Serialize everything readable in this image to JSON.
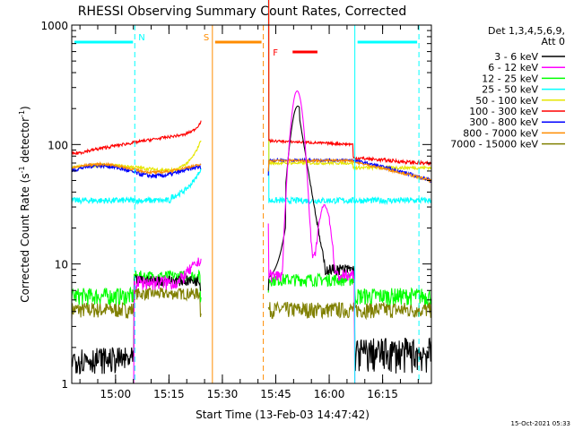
{
  "chart_data": {
    "type": "line",
    "title": "RHESSI Observing Summary Count Rates, Corrected",
    "xlabel": "Start Time (13-Feb-03 14:47:42)",
    "ylabel_main": "Corrected Count Rate (s",
    "ylabel_sup1": "-1",
    "ylabel_mid": " detector",
    "ylabel_sup2": "-1",
    "ylabel_end": ")",
    "yscale": "log",
    "ylim": [
      1,
      1000
    ],
    "xlim_minutes": [
      0,
      101
    ],
    "x_tick_labels": [
      "15:00",
      "15:15",
      "15:30",
      "15:45",
      "16:00",
      "16:15"
    ],
    "x_tick_minutes": [
      12.3,
      27.3,
      42.3,
      57.3,
      72.3,
      87.3
    ],
    "y_tick_labels": [
      "1",
      "10",
      "100",
      "1000"
    ],
    "y_tick_values": [
      1,
      10,
      100,
      1000
    ],
    "legend": {
      "header1": "Det 1,3,4,5,6,9,",
      "header2": "Att 0",
      "position": "right"
    },
    "series": [
      {
        "name": "3 - 6 keV",
        "color": "#000000"
      },
      {
        "name": "6 - 12 keV",
        "color": "#ff00ff"
      },
      {
        "name": "12 - 25 keV",
        "color": "#00ff00"
      },
      {
        "name": "25 - 50 keV",
        "color": "#00ffff"
      },
      {
        "name": "50 - 100 keV",
        "color": "#e6e600"
      },
      {
        "name": "100 - 300 keV",
        "color": "#ff0000"
      },
      {
        "name": "300 - 800 keV",
        "color": "#0000ff"
      },
      {
        "name": "800 - 7000 keV",
        "color": "#ff8c00"
      },
      {
        "name": "7000 - 15000 keV",
        "color": "#808000"
      }
    ],
    "annotations": [
      {
        "label": "N",
        "kind": "night",
        "color": "#00ffff",
        "start_min": 0,
        "end_min": 17.7
      },
      {
        "label": "S",
        "kind": "saa",
        "color": "#ff8c00",
        "start_min": 39.5,
        "end_min": 53.8
      },
      {
        "label": "F",
        "kind": "flare",
        "color": "#ff0000",
        "start_min": 59,
        "end_min": 69.5
      },
      {
        "label": "",
        "kind": "night",
        "color": "#00ffff",
        "start_min": 79.5,
        "end_min": 97.5
      }
    ],
    "gap_minutes": [
      36.3,
      55.2
    ],
    "timestamp": "15-Oct-2021 05:33"
  }
}
